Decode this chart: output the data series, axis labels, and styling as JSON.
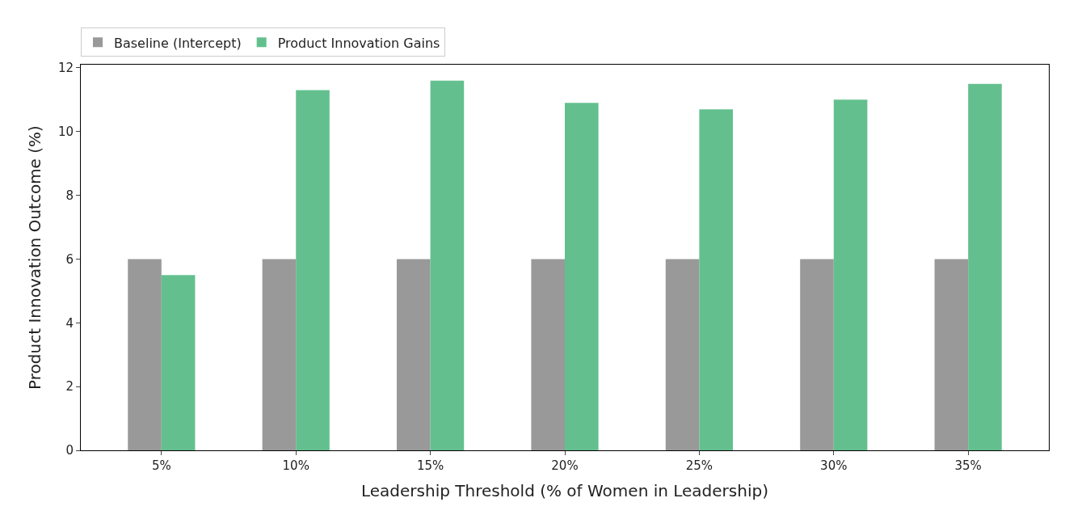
{
  "chart_data": {
    "type": "bar",
    "xlabel": "Leadership Threshold (% of Women in Leadership)",
    "ylabel": "Product Innovation Outcome (%)",
    "categories": [
      "5%",
      "10%",
      "15%",
      "20%",
      "25%",
      "30%",
      "35%"
    ],
    "series": [
      {
        "name": "Baseline (Intercept)",
        "color": "#999999",
        "values": [
          6,
          6,
          6,
          6,
          6,
          6,
          6
        ]
      },
      {
        "name": "Product Innovation Gains",
        "color": "#63c08e",
        "values": [
          5.5,
          11.3,
          11.6,
          10.9,
          10.7,
          11.0,
          11.5
        ]
      }
    ],
    "ylim": [
      0,
      12.1
    ],
    "yticks": [
      0,
      2,
      4,
      6,
      8,
      10,
      12
    ],
    "grid": false,
    "legend": "top left"
  }
}
